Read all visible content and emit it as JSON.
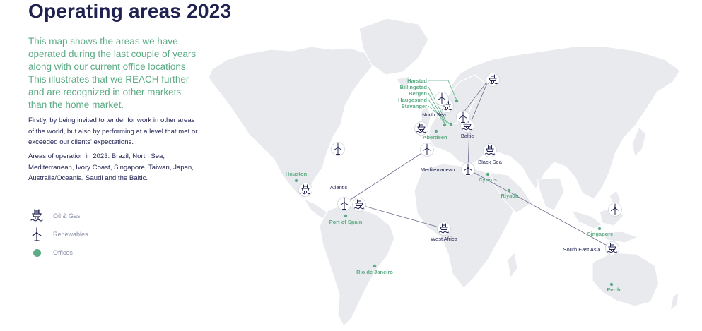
{
  "page": {
    "title": "Operating areas 2023",
    "lead": "This map shows the areas we have operated during the last couple of years along with our current office locations. This illustrates that we REACH further and are recognized in other markets than the home market.",
    "body1": "Firstly, by being invited to tender for work in other areas of the world, but also by performing at a level that met or exceeded our clients' expectations.",
    "body2": "Areas of operation in 2023: Brazil, North Sea, Mediterranean, Ivory Coast, Singapore, Taiwan, Japan, Australia/Oceania, Saudi and the Baltic."
  },
  "legend": [
    {
      "label": "Oil & Gas",
      "icon": "oil-rig-icon"
    },
    {
      "label": "Renewables",
      "icon": "wind-turbine-icon"
    },
    {
      "label": "Offices",
      "icon": "office-dot-icon"
    }
  ],
  "colors": {
    "navy": "#1f2150",
    "green": "#5bab84",
    "land": "#e9eaee",
    "route": "#676a8a",
    "legend_text": "#8a8fa6"
  },
  "map": {
    "offices": [
      "Harstad",
      "Billingstad",
      "Bergen",
      "Haugesund",
      "Stavanger",
      "Aberdeen",
      "Houston",
      "Port of Spain",
      "Rio de Janeiro",
      "Cyprus",
      "Riyadh",
      "Singapore",
      "Perth"
    ],
    "areas": [
      "North Sea",
      "Baltic",
      "Black Sea",
      "Mediterranean",
      "Atlantic",
      "West Africa",
      "South East Asia"
    ]
  }
}
